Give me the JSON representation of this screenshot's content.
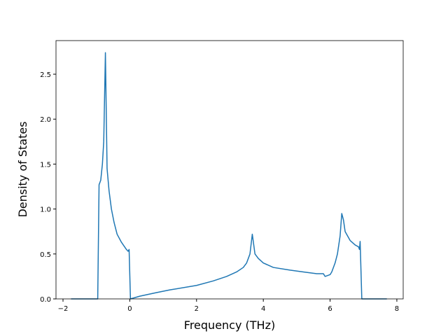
{
  "chart_data": {
    "type": "line",
    "xlabel": "Frequency (THz)",
    "ylabel": "Density of States",
    "x": [
      -1.76,
      -0.96,
      -0.92,
      -0.87,
      -0.82,
      -0.78,
      -0.73,
      -0.68,
      -0.62,
      -0.55,
      -0.47,
      -0.38,
      -0.25,
      -0.1,
      -0.05,
      -0.02,
      0.02,
      0.3,
      0.8,
      1.2,
      2,
      2.5,
      2.9,
      3.2,
      3.4,
      3.5,
      3.6,
      3.67,
      3.75,
      3.85,
      4.0,
      4.3,
      4.8,
      5.2,
      5.6,
      5.8,
      5.85,
      6.0,
      6.05,
      6.15,
      6.22,
      6.3,
      6.35,
      6.4,
      6.45,
      6.6,
      6.75,
      6.85,
      6.88,
      6.9,
      6.95,
      7.7
    ],
    "series": [
      {
        "color": "#1f77b4",
        "values": [
          0,
          0,
          1.27,
          1.32,
          1.5,
          1.75,
          2.74,
          1.45,
          1.2,
          1.0,
          0.85,
          0.72,
          0.63,
          0.55,
          0.53,
          0.55,
          0,
          0.03,
          0.07,
          0.1,
          0.15,
          0.2,
          0.25,
          0.3,
          0.35,
          0.4,
          0.5,
          0.72,
          0.5,
          0.45,
          0.4,
          0.35,
          0.32,
          0.3,
          0.28,
          0.28,
          0.25,
          0.27,
          0.3,
          0.4,
          0.5,
          0.7,
          0.95,
          0.88,
          0.75,
          0.65,
          0.6,
          0.58,
          0.55,
          0.64,
          0,
          0
        ]
      }
    ],
    "xlim": [
      -2.21,
      8.19
    ],
    "ylim": [
      0,
      2.874
    ],
    "xticks": [
      {
        "value": -2,
        "label": "−2"
      },
      0,
      2,
      4,
      6,
      8
    ],
    "yticks": [
      {
        "value": 0,
        "label": "0.0"
      },
      0.5,
      {
        "value": 1,
        "label": "1.0"
      },
      1.5,
      {
        "value": 2,
        "label": "2.0"
      },
      2.5
    ]
  }
}
